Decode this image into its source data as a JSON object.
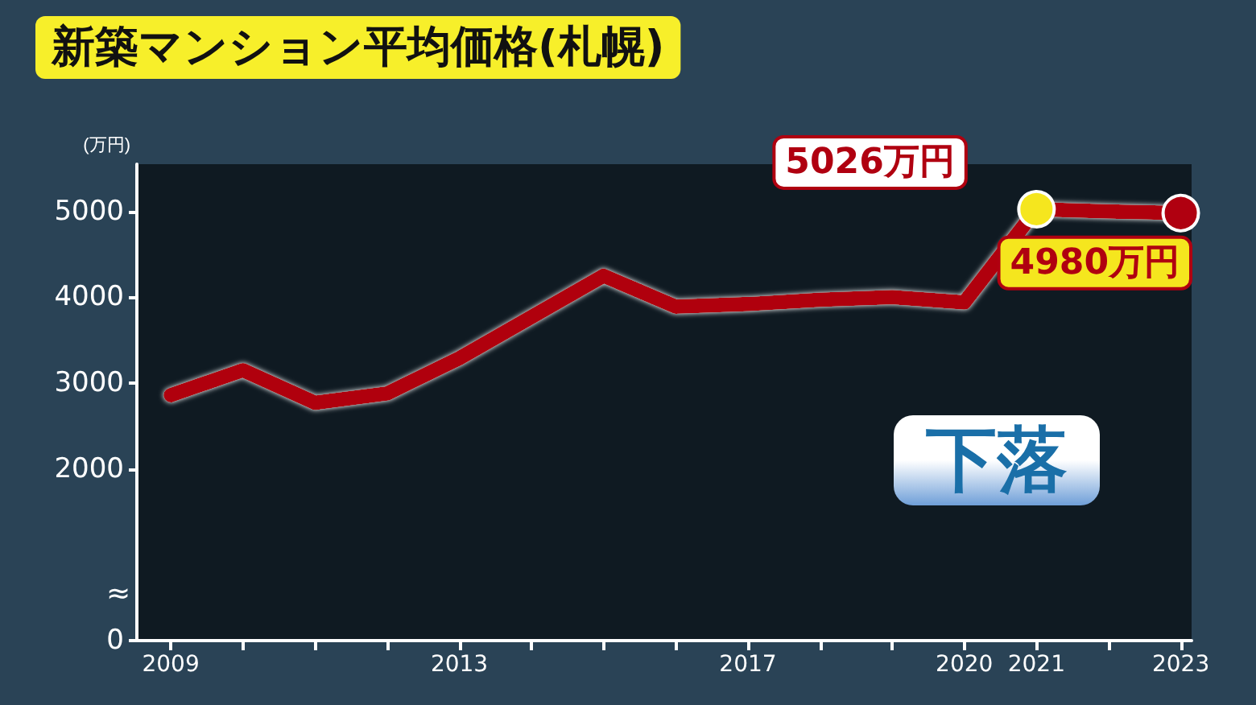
{
  "chart_data": {
    "type": "line",
    "title": "新築マンション平均価格(札幌)",
    "ylabel": "(万円)",
    "x": [
      2009,
      2010,
      2011,
      2012,
      2013,
      2014,
      2015,
      2016,
      2017,
      2018,
      2019,
      2020,
      2021,
      2022,
      2023
    ],
    "series": [
      {
        "color": "#b00010",
        "values": [
          2860,
          3150,
          2770,
          2880,
          3290,
          3770,
          4250,
          3890,
          3920,
          3970,
          4000,
          3940,
          5026,
          5000,
          4980
        ],
        "value_labels": [
          null,
          null,
          null,
          null,
          null,
          null,
          null,
          null,
          null,
          null,
          null,
          null,
          "5026万円",
          null,
          "4980万円"
        ],
        "colors": [
          null,
          null,
          null,
          null,
          null,
          null,
          null,
          null,
          null,
          null,
          null,
          null,
          "#f5e61e",
          null,
          "#b00010"
        ]
      }
    ],
    "xlim": [
      2008.53,
      2023.15
    ],
    "xticks": [
      2009,
      {
        "value": 2010,
        "label": null
      },
      {
        "value": 2011,
        "label": null
      },
      {
        "value": 2012,
        "label": null
      },
      2013,
      {
        "value": 2014,
        "label": null
      },
      {
        "value": 2015,
        "label": null
      },
      {
        "value": 2016,
        "label": null
      },
      2017,
      {
        "value": 2018,
        "label": null
      },
      {
        "value": 2019,
        "label": null
      },
      2020,
      2021,
      {
        "value": 2022,
        "label": null
      },
      2023
    ],
    "ylim": [
      0,
      5550
    ],
    "yticks": [
      0,
      2000,
      3000,
      4000,
      5000
    ],
    "grid": false,
    "annotations": [
      "下落",
      "≈"
    ]
  }
}
